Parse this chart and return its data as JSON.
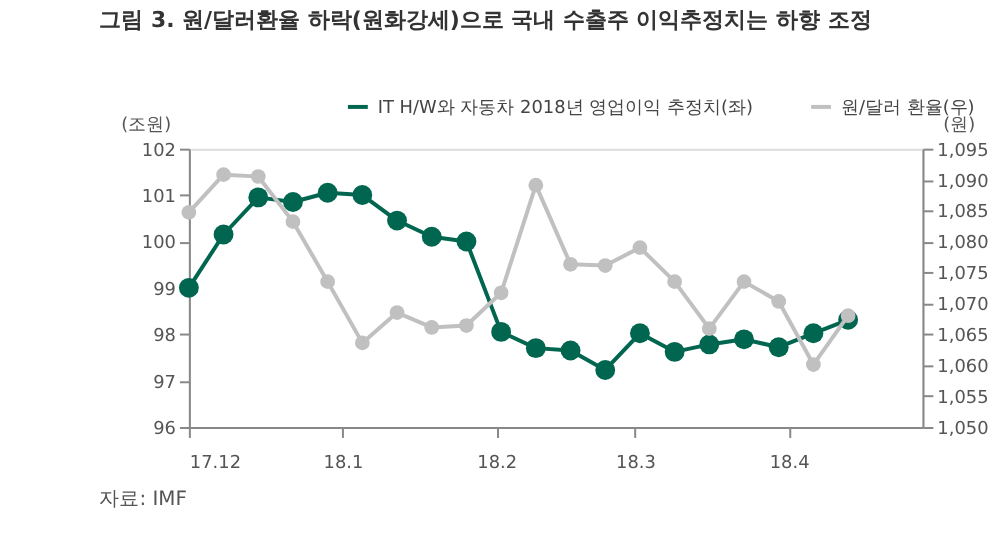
{
  "chart_data": {
    "type": "line",
    "title": "그림 3. 원/달러환율 하락(원화강세)으로 국내 수출주 이익추정치는 하향 조정",
    "x": [
      "2017-12-01",
      "2017-12-08",
      "2017-12-15",
      "2017-12-22",
      "2017-12-29",
      "2018-01-05",
      "2018-01-12",
      "2018-01-19",
      "2018-01-26",
      "2018-02-02",
      "2018-02-09",
      "2018-02-16",
      "2018-02-23",
      "2018-03-02",
      "2018-03-09",
      "2018-03-16",
      "2018-03-23",
      "2018-03-30",
      "2018-04-06",
      "2018-04-13"
    ],
    "series": [
      {
        "name": "IT H/W와 자동차 2018년 영업이익 추정치(좌)",
        "color": "#00664f",
        "values": [
          99.0,
          100.15,
          100.95,
          100.85,
          101.05,
          101.0,
          100.45,
          100.1,
          100.0,
          98.05,
          97.7,
          97.65,
          97.23,
          98.02,
          97.62,
          97.78,
          97.89,
          97.72,
          98.02,
          98.31
        ]
      },
      {
        "name": "원/달러 환율(우)",
        "color": "#c0c0c0",
        "axis": "y2",
        "values": [
          1084.7,
          1090.8,
          1090.5,
          1083.2,
          1073.5,
          1063.6,
          1068.5,
          1066.1,
          1066.4,
          1071.7,
          1089.1,
          1076.3,
          1076.1,
          1079.0,
          1073.5,
          1065.9,
          1073.5,
          1070.3,
          1060.1,
          1068.0
        ]
      }
    ],
    "ylabel": "(조원)",
    "y2label": "(원)",
    "xlim": [
      "2017-12-01",
      "2018-04-28"
    ],
    "xticks": [
      {
        "value": "2017-12-01",
        "label": "17.12"
      },
      {
        "value": "2018-01-01",
        "label": "18.1"
      },
      {
        "value": "2018-02-01",
        "label": "18.2"
      },
      {
        "value": "2018-03-01",
        "label": "18.3"
      },
      {
        "value": "2018-04-01",
        "label": "18.4"
      }
    ],
    "ylim": [
      96,
      102
    ],
    "yticks": [
      96,
      97,
      98,
      99,
      100,
      101,
      102
    ],
    "y2lim": [
      1050,
      1095
    ],
    "y2ticks": [
      {
        "value": 1050,
        "label": "1,050"
      },
      {
        "value": 1055,
        "label": "1,055"
      },
      {
        "value": 1060,
        "label": "1,060"
      },
      {
        "value": 1065,
        "label": "1,065"
      },
      {
        "value": 1070,
        "label": "1,070"
      },
      {
        "value": 1075,
        "label": "1,075"
      },
      {
        "value": 1080,
        "label": "1,080"
      },
      {
        "value": 1085,
        "label": "1,085"
      },
      {
        "value": 1090,
        "label": "1,090"
      },
      {
        "value": 1095,
        "label": "1,095"
      }
    ],
    "grid": false,
    "legend": "top right",
    "marker": "circle",
    "line_style": "solid",
    "annotations": [
      "자료: IMF"
    ]
  }
}
